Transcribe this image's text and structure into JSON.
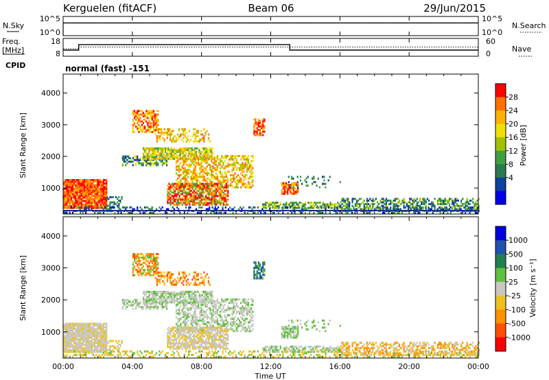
{
  "header": {
    "station": "Kerguelen (fitACF)",
    "beam": "Beam 06",
    "date": "29/Jun/2015"
  },
  "chart_data": [
    {
      "type": "line",
      "panel": "noise",
      "left_label": "N.Sky",
      "right_label": "N.Search",
      "y_ticks_left": [
        "10^5",
        "10^0"
      ],
      "y_ticks_right": [
        "10^5",
        "10^0"
      ],
      "series": [
        {
          "name": "N.Sky",
          "style": "solid",
          "x": [
            0,
            24
          ],
          "y_log10": [
            4.2,
            4.2
          ]
        },
        {
          "name": "N.Search",
          "style": "dotted",
          "x": [
            0,
            24
          ],
          "y_log10": [
            4.3,
            4.3
          ]
        }
      ]
    },
    {
      "type": "line",
      "panel": "frequency",
      "left_label": "Freq.",
      "left_unit": "[MHz]",
      "right_label": "Nave",
      "y_ticks_left": [
        "18",
        "8"
      ],
      "y_ticks_right": [
        "60",
        "0"
      ],
      "series": [
        {
          "name": "Freq.",
          "style": "solid",
          "x": [
            0,
            0.9,
            0.9,
            13.1,
            13.1,
            24
          ],
          "y": [
            10,
            10,
            15.3,
            15.3,
            10,
            10
          ]
        },
        {
          "name": "Nave",
          "style": "dotted",
          "x": [
            0,
            0.9,
            0.9,
            24
          ],
          "y": [
            30,
            30,
            39,
            39
          ]
        }
      ]
    },
    {
      "type": "heatmap",
      "panel": "power",
      "cpid_label": "CPID",
      "cpid_text": "normal (fast) -151",
      "ylabel": "Slant Range [km]",
      "ylim": [
        180,
        4600
      ],
      "y_ticks": [
        "4000",
        "3000",
        "2000",
        "1000"
      ],
      "colorbar_label": "Power [dB]",
      "colorbar_ticks": [
        "28",
        "24",
        "20",
        "16",
        "12",
        "8",
        "4"
      ],
      "colorbar_colors": [
        "#ff0000",
        "#ff7000",
        "#ffb000",
        "#f0e000",
        "#a0c000",
        "#40a040",
        "#2a7a50",
        "#1040a0",
        "#0000e8"
      ]
    },
    {
      "type": "heatmap",
      "panel": "velocity",
      "ylabel": "Slant Range [km]",
      "ylim": [
        180,
        4600
      ],
      "y_ticks": [
        "4000",
        "3000",
        "2000",
        "1000"
      ],
      "colorbar_label": "Velocity [m s⁻¹]",
      "colorbar_ticks": [
        "1000",
        "500",
        "100",
        "25",
        "-25",
        "-100",
        "-500",
        "-1000"
      ],
      "colorbar_colors": [
        "#0000e0",
        "#2050b0",
        "#208050",
        "#60c040",
        "#c8c8c0",
        "#f0c020",
        "#ff9000",
        "#ff5000",
        "#ff0000"
      ]
    }
  ],
  "x_axis": {
    "label": "Time UT",
    "range_hours": [
      0,
      24
    ],
    "tick_hours": [
      0,
      4,
      8,
      12,
      16,
      20,
      24
    ],
    "tick_labels": [
      "00:00",
      "04:00",
      "08:00",
      "12:00",
      "16:00",
      "20:00",
      "00:00"
    ]
  }
}
